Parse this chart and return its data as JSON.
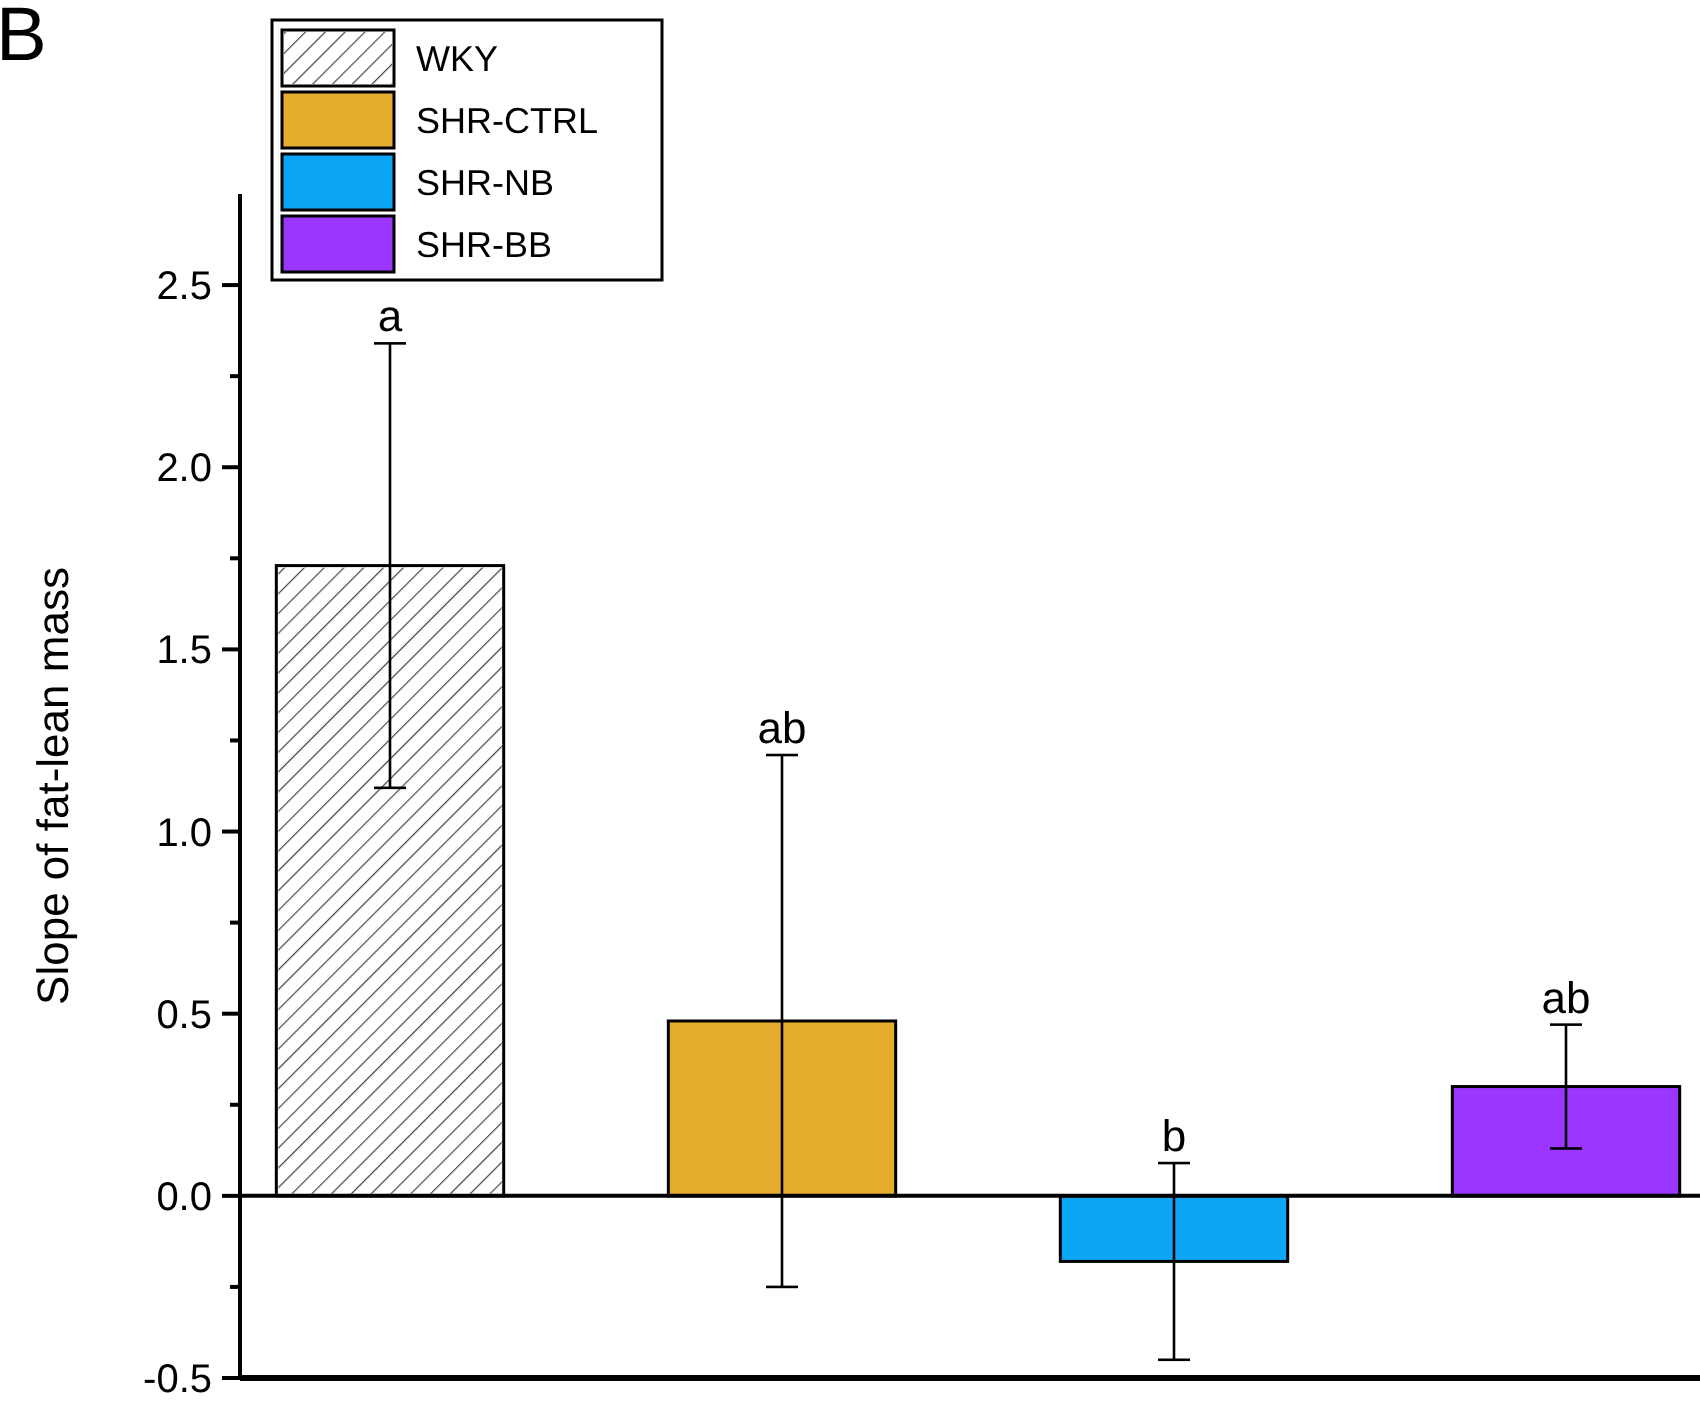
{
  "chart_data": {
    "type": "bar",
    "title": "B",
    "ylabel": "Slope of fat-lean mass",
    "categories": [
      null,
      null,
      null,
      null
    ],
    "stacked": true,
    "legend": "top left",
    "series": [
      {
        "name": "WKY",
        "color": "#ffffff",
        "values": [
          1.73,
          null,
          null,
          null
        ],
        "errors": [
          0.61,
          null,
          null,
          null
        ]
      },
      {
        "name": "SHR-CTRL",
        "color": "#e6ac2e",
        "values": [
          null,
          0.48,
          null,
          null
        ],
        "errors": [
          null,
          0.73,
          null,
          null
        ]
      },
      {
        "name": "SHR-NB",
        "color": "#0ca6f7",
        "values": [
          null,
          null,
          -0.18,
          null
        ],
        "errors": [
          null,
          null,
          0.27,
          null
        ]
      },
      {
        "name": "SHR-BB",
        "color": "#9a36ff",
        "values": [
          null,
          null,
          null,
          0.3
        ],
        "errors": [
          null,
          null,
          null,
          0.17
        ]
      }
    ],
    "annotations": [
      {
        "text": "a",
        "y": 2.34
      },
      {
        "text": "ab",
        "y": 1.21
      },
      {
        "text": "b",
        "y": 0.09
      },
      {
        "text": "ab",
        "y": 0.47
      }
    ],
    "ylim": [
      -0.5,
      2.75
    ],
    "yticks": [
      -0.5,
      {
        "value": -0.25,
        "label": null
      },
      {
        "value": 0,
        "label": "0.0"
      },
      {
        "value": 0.25,
        "label": null
      },
      0.5,
      {
        "value": 0.75,
        "label": null
      },
      {
        "value": 1,
        "label": "1.0"
      },
      {
        "value": 1.25,
        "label": null
      },
      1.5,
      {
        "value": 1.75,
        "label": null
      },
      {
        "value": 2,
        "label": "2.0"
      },
      {
        "value": 2.25,
        "label": null
      },
      2.5
    ]
  }
}
